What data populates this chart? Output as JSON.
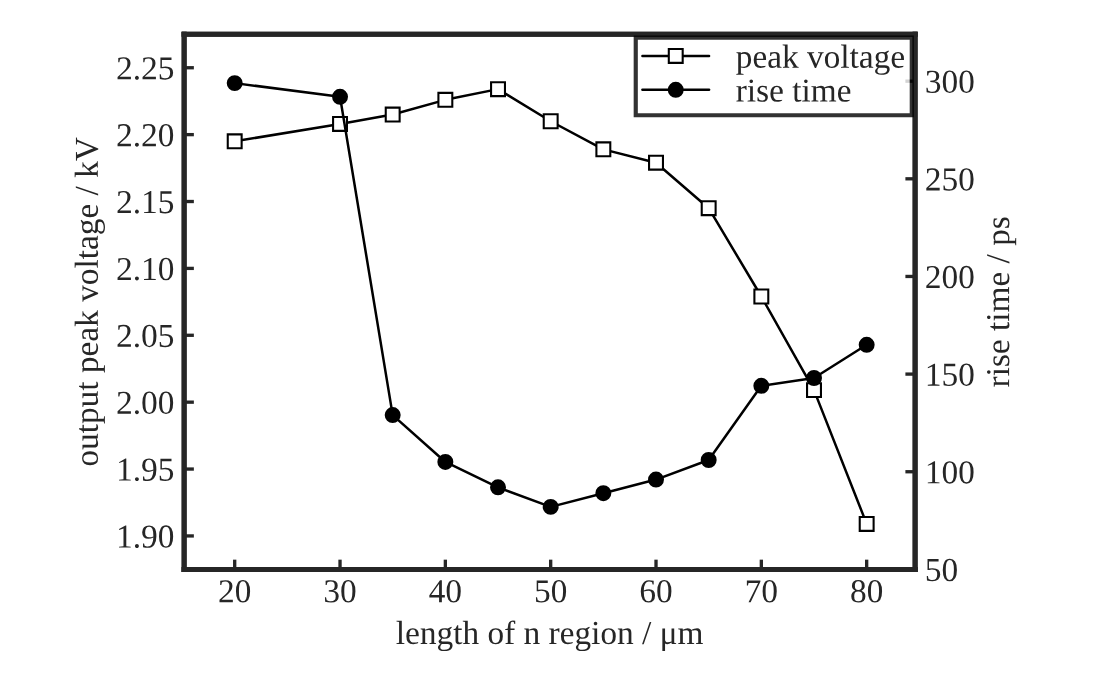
{
  "chart_data": {
    "type": "line",
    "x": [
      20,
      30,
      35,
      40,
      45,
      50,
      55,
      60,
      65,
      70,
      75,
      80
    ],
    "xlabel": "length of n region / μm",
    "ylabel": "output peak voltage / kV",
    "y2label": "rise time / ps",
    "series": [
      {
        "name": "peak voltage",
        "color": "#000000",
        "marker": "square",
        "values": [
          2.195,
          2.208,
          2.215,
          2.226,
          2.234,
          2.21,
          2.189,
          2.179,
          2.145,
          2.079,
          2.009,
          1.909
        ]
      },
      {
        "name": "rise time",
        "color": "#000000",
        "marker": "circle",
        "axis": "y2",
        "values": [
          299,
          292,
          129,
          105,
          92,
          82,
          89,
          96,
          106,
          144,
          148,
          165
        ]
      }
    ],
    "xlim": [
      15.2,
      84.6
    ],
    "xticks": [
      20,
      30,
      40,
      50,
      60,
      70,
      80
    ],
    "ylim": [
      1.875,
      2.275
    ],
    "yticks": [
      {
        "value": 1.9,
        "label": "1.90"
      },
      {
        "value": 1.95,
        "label": "1.95"
      },
      {
        "value": 2.0,
        "label": "2.00"
      },
      {
        "value": 2.05,
        "label": "2.05"
      },
      {
        "value": 2.1,
        "label": "2.10"
      },
      {
        "value": 2.15,
        "label": "2.15"
      },
      {
        "value": 2.2,
        "label": "2.20"
      },
      {
        "value": 2.25,
        "label": "2.25"
      }
    ],
    "y2lim": [
      50,
      324
    ],
    "y2ticks": [
      50,
      100,
      150,
      200,
      250,
      300
    ],
    "legend": "top right",
    "grid": false,
    "line_style": "solid"
  }
}
